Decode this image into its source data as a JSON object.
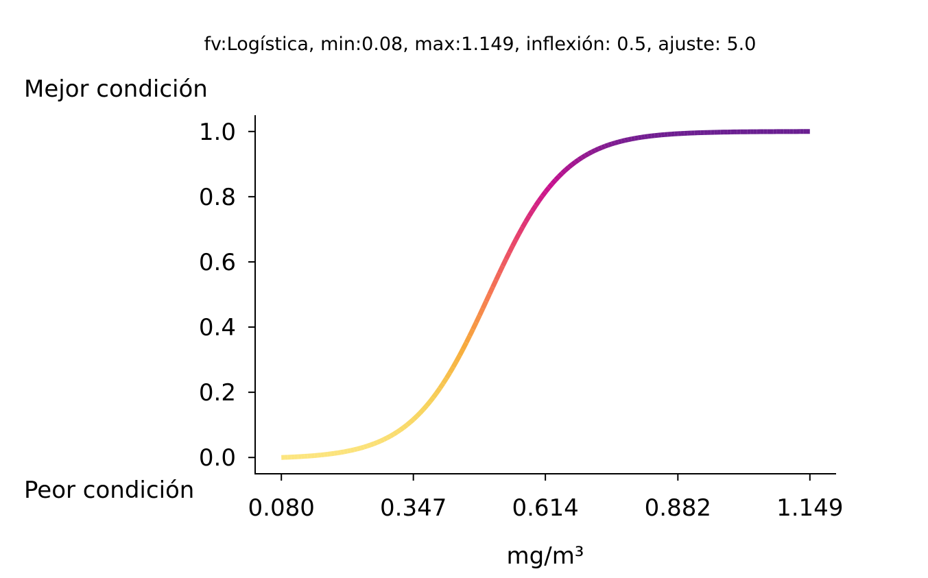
{
  "chart_data": {
    "type": "line",
    "title": "fv:Logística, min:0.08, max:1.149, inflexión: 0.5, ajuste: 5.0",
    "xlabel": "mg/m³",
    "ylabel_top": "Mejor condición",
    "ylabel_bottom": "Peor condición",
    "function": {
      "kind": "logistic",
      "min": 0.08,
      "max": 1.149,
      "inflection": 0.5,
      "slope": 5.0
    },
    "xlim": [
      0.027,
      1.202
    ],
    "ylim": [
      -0.05,
      1.05
    ],
    "xticks": [
      0.08,
      0.347,
      0.614,
      0.882,
      1.149
    ],
    "xtick_labels": [
      "0.080",
      "0.347",
      "0.614",
      "0.882",
      "1.149"
    ],
    "yticks": [
      0.0,
      0.2,
      0.4,
      0.6,
      0.8,
      1.0
    ],
    "ytick_labels": [
      "0.0",
      "0.2",
      "0.4",
      "0.6",
      "0.8",
      "1.0"
    ],
    "colormap": "plasma",
    "colormap_stops": [
      "#6a1f91",
      "#c8118f",
      "#e8456b",
      "#f67a52",
      "#f7ad3c",
      "#f7d25c",
      "#fce57f"
    ],
    "series": [
      {
        "name": "logística",
        "x": [
          0.08,
          0.133,
          0.187,
          0.24,
          0.294,
          0.347,
          0.4,
          0.454,
          0.507,
          0.561,
          0.614,
          0.668,
          0.721,
          0.775,
          0.828,
          0.882,
          0.935,
          0.989,
          1.042,
          1.096,
          1.149
        ],
        "y": [
          0.0012,
          0.0017,
          0.0041,
          0.0098,
          0.0225,
          0.053,
          0.118,
          0.24,
          0.44,
          0.67,
          0.83,
          0.93,
          0.972,
          0.989,
          0.996,
          0.9985,
          0.9994,
          0.9998,
          0.9999,
          1.0,
          1.0
        ]
      }
    ]
  }
}
